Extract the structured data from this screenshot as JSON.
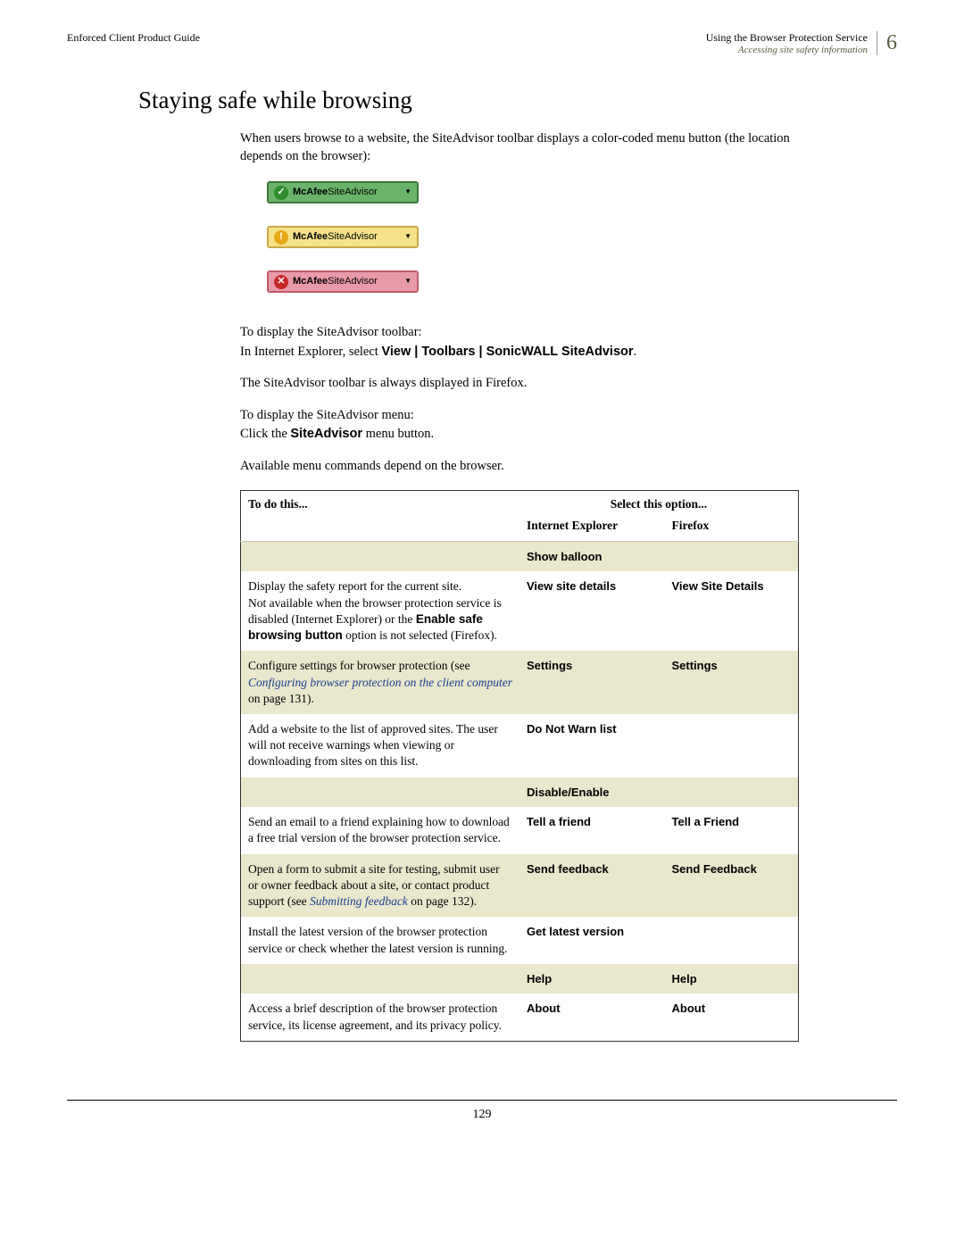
{
  "header": {
    "left": "Enforced Client Product Guide",
    "right1": "Using the Browser Protection Service",
    "right2": "Accessing site safety information",
    "chapter": "6"
  },
  "title": "Staying safe while browsing",
  "intro": "When users browse to a website, the SiteAdvisor toolbar displays a color-coded menu button (the location depends on the browser):",
  "badges": {
    "brand": "McAfee",
    "product": " SiteAdvisor",
    "items": [
      {
        "bg": "#6bb36b",
        "border": "#3a7a3a",
        "icon_bg": "#2e8b2e",
        "icon_glyph": "✓"
      },
      {
        "bg": "#f5e28a",
        "border": "#c9a84a",
        "icon_bg": "#e6a817",
        "icon_glyph": "!"
      },
      {
        "bg": "#e89aa8",
        "border": "#c05a6a",
        "icon_bg": "#c62828",
        "icon_glyph": "✕"
      }
    ]
  },
  "para_display_toolbar": "To display the SiteAdvisor toolbar:",
  "para_ie_prefix": "In Internet Explorer, select ",
  "para_ie_bold": "View | Toolbars | SonicWALL SiteAdvisor",
  "para_ff": "The SiteAdvisor toolbar is always displayed in Firefox.",
  "para_display_menu": "To display the SiteAdvisor menu:",
  "para_click_prefix": "Click the ",
  "para_click_bold": "SiteAdvisor",
  "para_click_suffix": " menu button.",
  "para_available": "Available menu commands depend on the browser.",
  "table": {
    "hdr_todo": "To do this...",
    "hdr_select": "Select this option...",
    "hdr_ie": "Internet Explorer",
    "hdr_ff": "Firefox",
    "rows": [
      {
        "shaded": true,
        "desc_html": "",
        "ie": "Show balloon",
        "ff": ""
      },
      {
        "shaded": false,
        "desc_html": "Display the safety report for the current site.<br>Not available when the browser protection service is disabled (Internet Explorer) or the <span class=\"bold-sans\">Enable safe browsing button</span> option is not selected (Firefox).",
        "ie": "View site details",
        "ff": "View Site Details"
      },
      {
        "shaded": true,
        "desc_html": "Configure settings for browser protection (see <span class=\"link\">Configuring browser protection on the client computer</span> on page 131).",
        "ie": "Settings",
        "ff": "Settings"
      },
      {
        "shaded": false,
        "desc_html": "Add a website to the list of approved sites. The user will not receive warnings when viewing or downloading from sites on this list.",
        "ie": "Do Not Warn list",
        "ff": ""
      },
      {
        "shaded": true,
        "desc_html": "",
        "ie": "Disable/Enable",
        "ff": ""
      },
      {
        "shaded": false,
        "desc_html": "Send an email to a friend explaining how to download a free trial version of the browser protection service.",
        "ie": "Tell a friend",
        "ff": "Tell a Friend"
      },
      {
        "shaded": true,
        "desc_html": "Open a form to submit a site for testing, submit user or owner feedback about a site, or contact product support (see <span class=\"link\">Submitting feedback</span> on page 132).",
        "ie": "Send feedback",
        "ff": "Send Feedback"
      },
      {
        "shaded": false,
        "desc_html": "Install the latest version of the browser protection service or check whether the latest version is running.",
        "ie": "Get latest version",
        "ff": ""
      },
      {
        "shaded": true,
        "desc_html": "",
        "ie": "Help",
        "ff": "Help"
      },
      {
        "shaded": false,
        "desc_html": "Access a brief description of the browser protection service, its license agreement, and its privacy policy.",
        "ie": "About",
        "ff": "About"
      }
    ]
  },
  "page_number": "129"
}
